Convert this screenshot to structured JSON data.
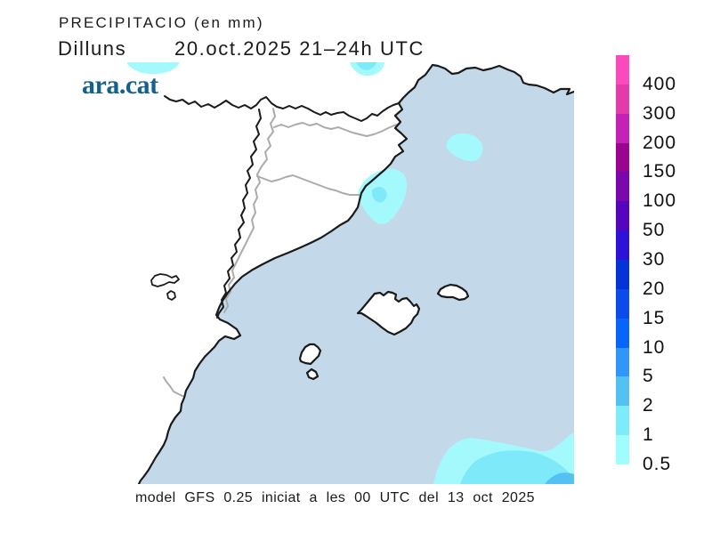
{
  "header": {
    "kicker": "PRECIPITACIO (en mm)",
    "day": "Dilluns",
    "datetime": "20.oct.2025 21–24h UTC",
    "brand": "ara.cat"
  },
  "footer": {
    "model_line": "model GFS 0.25 iniciat a les 00 UTC del 13 oct 2025"
  },
  "colorbar": {
    "levels": [
      "400",
      "300",
      "200",
      "150",
      "100",
      "50",
      "30",
      "20",
      "15",
      "10",
      "5",
      "2",
      "1",
      "0.5"
    ],
    "colors": [
      "#FA4ABC",
      "#E23CAB",
      "#C322B4",
      "#9A0590",
      "#7A08AC",
      "#5505BC",
      "#2F12D8",
      "#0433D8",
      "#0B4BEC",
      "#0765FA",
      "#3295F8",
      "#55C1F3",
      "#7DEBF9",
      "#A0FCFD"
    ]
  },
  "map": {
    "sea_color": "#C3D9E9",
    "land_color": "#FFFFFF",
    "coast_color": "#1A1A1A",
    "border_color": "#1A1A1A",
    "province_border_color": "#ABABAB",
    "precip_light_color": "#A4F9FC",
    "precip_mid_color": "#7DE9F9",
    "precip_heavy_color": "#55C1F3"
  },
  "text_color": "#1A1A1A",
  "brand_color": "#15618E"
}
